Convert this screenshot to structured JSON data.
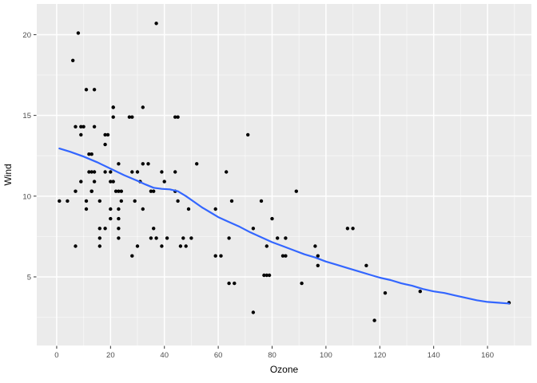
{
  "chart_data": {
    "type": "scatter",
    "title": "",
    "xlabel": "Ozone",
    "ylabel": "Wind",
    "xlim": [
      -7.4,
      176.3
    ],
    "ylim": [
      0.75,
      21.9
    ],
    "x_ticks": [
      0,
      20,
      40,
      60,
      80,
      100,
      120,
      140,
      160
    ],
    "y_ticks": [
      5,
      10,
      15,
      20
    ],
    "x_minor_ticks": [
      10,
      30,
      50,
      70,
      90,
      110,
      130,
      150,
      170
    ],
    "y_minor_ticks": [
      2.5,
      7.5,
      12.5,
      17.5
    ],
    "grid": true,
    "legend_position": "none",
    "colors": {
      "panel_background": "#EBEBEB",
      "grid_major": "#FFFFFF",
      "grid_minor": "#FFFFFF",
      "point": "#000000",
      "smooth_line": "#3366FF",
      "tick_mark": "#333333",
      "tick_label": "#4D4D4D",
      "axis_title": "#000000",
      "figure_background": "#FFFFFF"
    },
    "points": [
      [
        41,
        7.4
      ],
      [
        36,
        8.0
      ],
      [
        12,
        12.6
      ],
      [
        18,
        11.5
      ],
      [
        28,
        14.9
      ],
      [
        23,
        8.6
      ],
      [
        19,
        13.8
      ],
      [
        8,
        20.1
      ],
      [
        7,
        6.9
      ],
      [
        16,
        9.7
      ],
      [
        11,
        9.2
      ],
      [
        14,
        10.9
      ],
      [
        18,
        13.2
      ],
      [
        14,
        11.5
      ],
      [
        34,
        12.0
      ],
      [
        6,
        18.4
      ],
      [
        30,
        11.5
      ],
      [
        11,
        9.7
      ],
      [
        1,
        9.7
      ],
      [
        11,
        16.6
      ],
      [
        4,
        9.7
      ],
      [
        32,
        12.0
      ],
      [
        23,
        12.0
      ],
      [
        45,
        14.9
      ],
      [
        115,
        5.7
      ],
      [
        37,
        7.4
      ],
      [
        29,
        9.7
      ],
      [
        71,
        13.8
      ],
      [
        39,
        11.5
      ],
      [
        23,
        8.0
      ],
      [
        21,
        14.9
      ],
      [
        37,
        20.7
      ],
      [
        20,
        9.2
      ],
      [
        12,
        11.5
      ],
      [
        13,
        10.3
      ],
      [
        135,
        4.1
      ],
      [
        49,
        9.2
      ],
      [
        32,
        9.2
      ],
      [
        64,
        4.6
      ],
      [
        40,
        10.9
      ],
      [
        77,
        5.1
      ],
      [
        97,
        6.3
      ],
      [
        97,
        5.7
      ],
      [
        85,
        7.4
      ],
      [
        10,
        14.3
      ],
      [
        27,
        14.9
      ],
      [
        7,
        14.3
      ],
      [
        48,
        6.9
      ],
      [
        35,
        10.3
      ],
      [
        61,
        6.3
      ],
      [
        79,
        5.1
      ],
      [
        63,
        11.5
      ],
      [
        16,
        6.9
      ],
      [
        80,
        8.6
      ],
      [
        108,
        8.0
      ],
      [
        20,
        8.6
      ],
      [
        52,
        12.0
      ],
      [
        82,
        7.4
      ],
      [
        50,
        7.4
      ],
      [
        64,
        7.4
      ],
      [
        59,
        9.2
      ],
      [
        39,
        6.9
      ],
      [
        9,
        13.8
      ],
      [
        16,
        7.4
      ],
      [
        78,
        6.9
      ],
      [
        35,
        7.4
      ],
      [
        66,
        4.6
      ],
      [
        122,
        4.0
      ],
      [
        89,
        10.3
      ],
      [
        110,
        8.0
      ],
      [
        44,
        11.5
      ],
      [
        28,
        11.5
      ],
      [
        65,
        9.7
      ],
      [
        22,
        10.3
      ],
      [
        59,
        6.3
      ],
      [
        23,
        7.4
      ],
      [
        31,
        10.9
      ],
      [
        44,
        10.3
      ],
      [
        21,
        15.5
      ],
      [
        9,
        14.3
      ],
      [
        45,
        9.7
      ],
      [
        168,
        3.4
      ],
      [
        73,
        8.0
      ],
      [
        76,
        9.7
      ],
      [
        118,
        2.3
      ],
      [
        84,
        6.3
      ],
      [
        85,
        6.3
      ],
      [
        96,
        6.9
      ],
      [
        78,
        5.1
      ],
      [
        73,
        2.8
      ],
      [
        91,
        4.6
      ],
      [
        47,
        7.4
      ],
      [
        32,
        15.5
      ],
      [
        20,
        10.9
      ],
      [
        23,
        10.3
      ],
      [
        21,
        10.9
      ],
      [
        24,
        9.7
      ],
      [
        44,
        14.9
      ],
      [
        21,
        15.5
      ],
      [
        28,
        6.3
      ],
      [
        9,
        10.9
      ],
      [
        13,
        11.5
      ],
      [
        46,
        6.9
      ],
      [
        18,
        13.8
      ],
      [
        13,
        10.3
      ],
      [
        24,
        10.3
      ],
      [
        16,
        8.0
      ],
      [
        13,
        12.6
      ],
      [
        23,
        9.2
      ],
      [
        36,
        10.3
      ],
      [
        7,
        10.3
      ],
      [
        14,
        16.6
      ],
      [
        30,
        6.9
      ],
      [
        14,
        14.3
      ],
      [
        18,
        8.0
      ],
      [
        20,
        11.5
      ]
    ],
    "smooth": [
      [
        1,
        12.95
      ],
      [
        5,
        12.75
      ],
      [
        10,
        12.45
      ],
      [
        15,
        12.1
      ],
      [
        20,
        11.7
      ],
      [
        25,
        11.3
      ],
      [
        30,
        10.95
      ],
      [
        33,
        10.72
      ],
      [
        36,
        10.52
      ],
      [
        39,
        10.45
      ],
      [
        42,
        10.42
      ],
      [
        45,
        10.3
      ],
      [
        48,
        10.0
      ],
      [
        51,
        9.65
      ],
      [
        54,
        9.3
      ],
      [
        57,
        9.0
      ],
      [
        60,
        8.7
      ],
      [
        64,
        8.4
      ],
      [
        68,
        8.1
      ],
      [
        72,
        7.75
      ],
      [
        76,
        7.45
      ],
      [
        80,
        7.15
      ],
      [
        84,
        6.9
      ],
      [
        88,
        6.65
      ],
      [
        92,
        6.4
      ],
      [
        96,
        6.2
      ],
      [
        100,
        5.95
      ],
      [
        104,
        5.75
      ],
      [
        108,
        5.55
      ],
      [
        112,
        5.35
      ],
      [
        116,
        5.15
      ],
      [
        120,
        4.95
      ],
      [
        124,
        4.8
      ],
      [
        128,
        4.6
      ],
      [
        132,
        4.45
      ],
      [
        136,
        4.25
      ],
      [
        140,
        4.1
      ],
      [
        144,
        4.0
      ],
      [
        148,
        3.85
      ],
      [
        152,
        3.7
      ],
      [
        156,
        3.55
      ],
      [
        160,
        3.45
      ],
      [
        164,
        3.4
      ],
      [
        168,
        3.35
      ]
    ]
  }
}
